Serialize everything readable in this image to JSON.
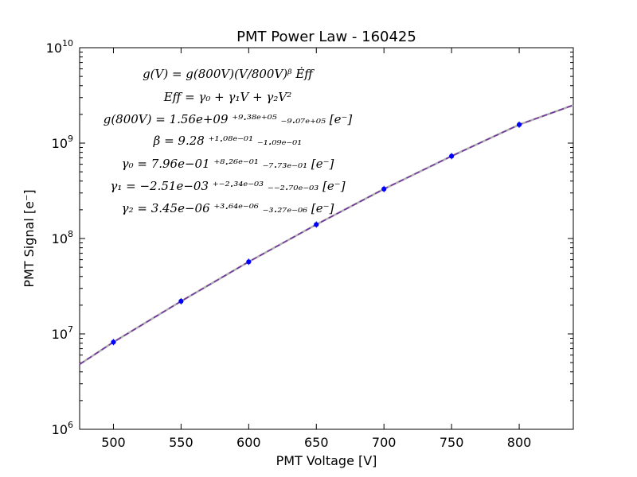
{
  "chart_data": {
    "type": "scatter",
    "title": "PMT Power Law - 160425",
    "xlabel": "PMT Voltage [V]",
    "ylabel": "PMT Signal [e⁻]",
    "xlim": [
      475,
      840
    ],
    "ylim": [
      1000000,
      10000000000
    ],
    "yscale": "log",
    "grid": false,
    "x_ticks": [
      500,
      550,
      600,
      650,
      700,
      750,
      800
    ],
    "x_tick_labels": [
      "500",
      "550",
      "600",
      "650",
      "700",
      "750",
      "800"
    ],
    "y_ticks": [
      1000000,
      10000000,
      100000000,
      1000000000,
      10000000000
    ],
    "y_tick_labels": [
      {
        "base": "10",
        "exp": "6"
      },
      {
        "base": "10",
        "exp": "7"
      },
      {
        "base": "10",
        "exp": "8"
      },
      {
        "base": "10",
        "exp": "9"
      },
      {
        "base": "10",
        "exp": "10"
      }
    ],
    "points": {
      "x": [
        500,
        550,
        600,
        650,
        700,
        750,
        800
      ],
      "y": [
        8200000,
        22000000,
        57000000,
        140000000,
        330000000,
        730000000,
        1560000000
      ],
      "color": "#0000ff"
    },
    "fit_curves": [
      {
        "style": "solid",
        "color": "#b0b0b0",
        "x": [
          475,
          500,
          550,
          600,
          650,
          700,
          750,
          800,
          840
        ],
        "y": [
          4800000,
          8200000,
          22000000,
          57000000,
          140000000,
          330000000,
          730000000,
          1560000000,
          2500000000
        ]
      },
      {
        "style": "dashed",
        "color": "#7030a0",
        "x": [
          475,
          500,
          550,
          600,
          650,
          700,
          750,
          800,
          840
        ],
        "y": [
          4800000,
          8200000,
          22000000,
          57000000,
          140000000,
          330000000,
          730000000,
          1560000000,
          2500000000
        ]
      }
    ],
    "annotations": [
      "g(V) = g(800V)(V/800V)ᵝ Ėff",
      "Eff = γ₀ + γ₁V + γ₂V²",
      "g(800V) = 1.56e+09 ⁺⁹·³⁸ᵉ⁺⁰⁵ ₋₉.₀₇ₑ₊₀₅ [e⁻]",
      "β = 9.28 ⁺¹·⁰⁸ᵉ⁻⁰¹ ₋₁.₀₉ₑ₋₀₁",
      "γ₀ = 7.96e−01 ⁺⁸·²⁶ᵉ⁻⁰¹ ₋₇.₇₃ₑ₋₀₁ [e⁻]",
      "γ₁ = −2.51e−03 ⁺⁻²·³⁴ᵉ⁻⁰³ ₋₋₂.₇₀ₑ₋₀₃ [e⁻]",
      "γ₂ = 3.45e−06 ⁺³·⁶⁴ᵉ⁻⁰⁶ ₋₃.₂₇ₑ₋₀₆ [e⁻]"
    ]
  }
}
